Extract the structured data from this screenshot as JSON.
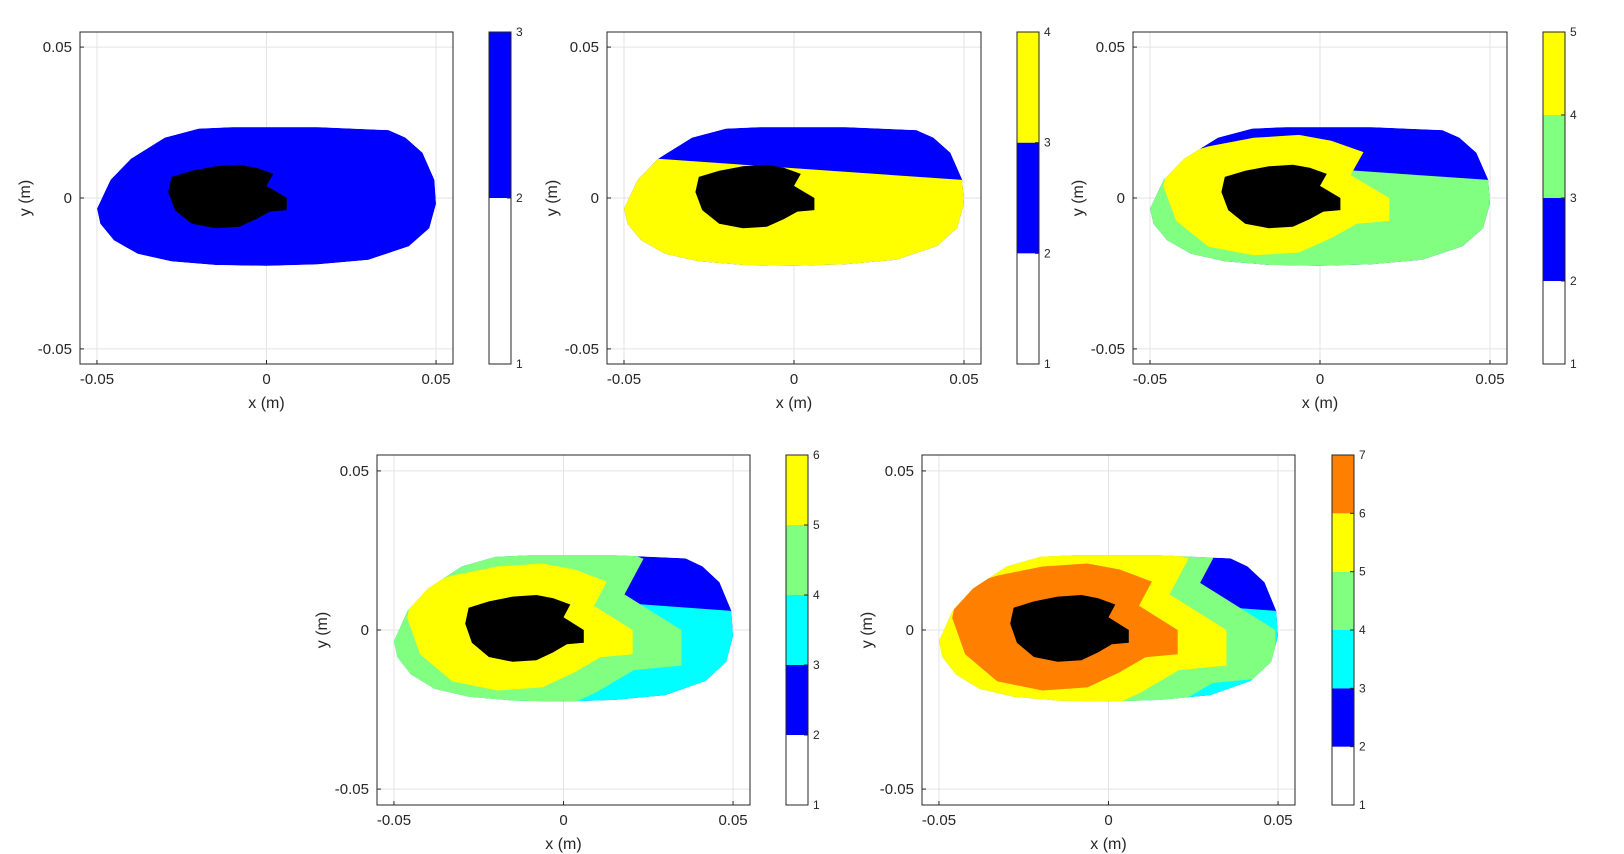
{
  "chart_data": [
    {
      "type": "heatmap",
      "title": "",
      "xlabel": "x (m)",
      "ylabel": "y (m)",
      "xlim": [
        -0.055,
        0.055
      ],
      "ylim": [
        -0.055,
        0.055
      ],
      "xticks": [
        "-0.05",
        "0",
        "0.05"
      ],
      "yticks": [
        "-0.05",
        "0",
        "0.05"
      ],
      "grid": true,
      "num_classes": 3,
      "colorbar": {
        "ticks": [
          "1",
          "2",
          "3"
        ],
        "colors": [
          "#ffffff",
          "#0000ff",
          "#000000"
        ]
      }
    },
    {
      "type": "heatmap",
      "title": "",
      "xlabel": "x (m)",
      "ylabel": "y (m)",
      "xlim": [
        -0.055,
        0.055
      ],
      "ylim": [
        -0.055,
        0.055
      ],
      "xticks": [
        "-0.05",
        "0",
        "0.05"
      ],
      "yticks": [
        "-0.05",
        "0",
        "0.05"
      ],
      "grid": true,
      "num_classes": 4,
      "colorbar": {
        "ticks": [
          "1",
          "2",
          "3",
          "4"
        ],
        "colors": [
          "#ffffff",
          "#0000ff",
          "#ffff00",
          "#000000"
        ]
      }
    },
    {
      "type": "heatmap",
      "title": "",
      "xlabel": "x (m)",
      "ylabel": "y (m)",
      "xlim": [
        -0.055,
        0.055
      ],
      "ylim": [
        -0.055,
        0.055
      ],
      "xticks": [
        "-0.05",
        "0",
        "0.05"
      ],
      "yticks": [
        "-0.05",
        "0",
        "0.05"
      ],
      "grid": true,
      "num_classes": 5,
      "colorbar": {
        "ticks": [
          "1",
          "2",
          "3",
          "4",
          "5"
        ],
        "colors": [
          "#ffffff",
          "#0000ff",
          "#80ff80",
          "#ffff00",
          "#000000"
        ]
      }
    },
    {
      "type": "heatmap",
      "title": "",
      "xlabel": "x (m)",
      "ylabel": "y (m)",
      "xlim": [
        -0.055,
        0.055
      ],
      "ylim": [
        -0.055,
        0.055
      ],
      "xticks": [
        "-0.05",
        "0",
        "0.05"
      ],
      "yticks": [
        "-0.05",
        "0",
        "0.05"
      ],
      "grid": true,
      "num_classes": 6,
      "colorbar": {
        "ticks": [
          "1",
          "2",
          "3",
          "4",
          "5",
          "6"
        ],
        "colors": [
          "#ffffff",
          "#0000ff",
          "#00ffff",
          "#80ff80",
          "#ffff00",
          "#000000"
        ]
      }
    },
    {
      "type": "heatmap",
      "title": "",
      "xlabel": "x (m)",
      "ylabel": "y (m)",
      "xlim": [
        -0.055,
        0.055
      ],
      "ylim": [
        -0.055,
        0.055
      ],
      "xticks": [
        "-0.05",
        "0",
        "0.05"
      ],
      "yticks": [
        "-0.05",
        "0",
        "0.05"
      ],
      "grid": true,
      "num_classes": 7,
      "colorbar": {
        "ticks": [
          "1",
          "2",
          "3",
          "4",
          "5",
          "6",
          "7"
        ],
        "colors": [
          "#ffffff",
          "#0000ff",
          "#00ffff",
          "#80ff80",
          "#ffff00",
          "#ff8000",
          "#000000"
        ]
      }
    }
  ]
}
